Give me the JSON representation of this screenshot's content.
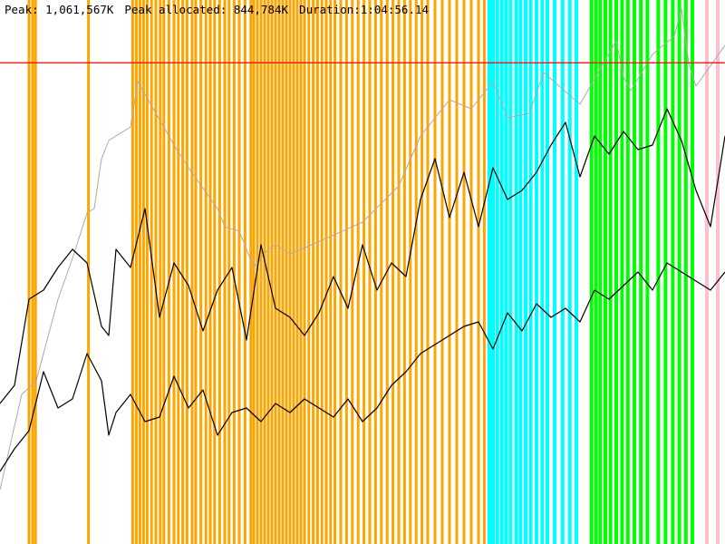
{
  "header": {
    "peak": "Peak: 1,061,567K",
    "peak_allocated": "Peak allocated: 844,784K",
    "duration": "Duration:1:04:56.14"
  },
  "colors": {
    "background": "#ffffff",
    "gc_scavenge": "#ffa500",
    "gc_mark_compact": "#00ffff",
    "gc_full": "#00ff00",
    "gc_other": "#ffc0cb",
    "peak_line": "#ff0000",
    "heap_size_line": "#aaaaaa",
    "heap_used_line": "#000000"
  },
  "chart_data": {
    "type": "line",
    "x_range": [
      0,
      100
    ],
    "y_range": [
      0,
      1200000
    ],
    "peak_marker_value": 1061567,
    "series": [
      {
        "key": "heap_size",
        "color": "#aaaaaa",
        "x": [
          0,
          3,
          5,
          8,
          10,
          12,
          13,
          14,
          15,
          18,
          19,
          24,
          26,
          30,
          31,
          33,
          35,
          37,
          38,
          40,
          43,
          50,
          55,
          58,
          62,
          65,
          68,
          70,
          73,
          75,
          80,
          85,
          86,
          87,
          90,
          93,
          94,
          95,
          96,
          100
        ],
        "values": [
          120000,
          330000,
          360000,
          540000,
          630000,
          730000,
          740000,
          850000,
          890000,
          920000,
          1020000,
          880000,
          830000,
          740000,
          700000,
          690000,
          610000,
          650000,
          660000,
          640000,
          660000,
          710000,
          790000,
          900000,
          980000,
          960000,
          1020000,
          940000,
          950000,
          1040000,
          970000,
          1110000,
          1030000,
          1000000,
          1080000,
          1120000,
          1180000,
          1060000,
          1010000,
          1100000
        ]
      },
      {
        "key": "heap_used_upper",
        "color": "#000000",
        "x": [
          0,
          2,
          4,
          6,
          8,
          10,
          12,
          14,
          15,
          16,
          18,
          20,
          22,
          24,
          26,
          28,
          30,
          32,
          34,
          36,
          38,
          40,
          42,
          44,
          46,
          48,
          50,
          52,
          54,
          56,
          58,
          60,
          62,
          64,
          66,
          68,
          70,
          72,
          74,
          76,
          78,
          80,
          82,
          84,
          86,
          88,
          90,
          92,
          94,
          96,
          98,
          100
        ],
        "values": [
          310000,
          350000,
          540000,
          560000,
          610000,
          650000,
          620000,
          480000,
          460000,
          650000,
          610000,
          740000,
          500000,
          620000,
          570000,
          470000,
          560000,
          610000,
          450000,
          660000,
          520000,
          500000,
          460000,
          510000,
          590000,
          520000,
          660000,
          560000,
          620000,
          590000,
          760000,
          850000,
          720000,
          820000,
          700000,
          830000,
          760000,
          780000,
          820000,
          880000,
          930000,
          810000,
          900000,
          860000,
          910000,
          870000,
          880000,
          960000,
          890000,
          780000,
          700000,
          900000
        ]
      },
      {
        "key": "heap_used_lower",
        "color": "#000000",
        "x": [
          0,
          2,
          4,
          6,
          8,
          10,
          12,
          14,
          15,
          16,
          18,
          20,
          22,
          24,
          26,
          28,
          30,
          32,
          34,
          36,
          38,
          40,
          42,
          44,
          46,
          48,
          50,
          52,
          54,
          56,
          58,
          60,
          62,
          64,
          66,
          68,
          70,
          72,
          74,
          76,
          78,
          80,
          82,
          84,
          86,
          88,
          90,
          92,
          94,
          96,
          98,
          100
        ],
        "values": [
          160000,
          210000,
          250000,
          380000,
          300000,
          320000,
          420000,
          360000,
          240000,
          290000,
          330000,
          270000,
          280000,
          370000,
          300000,
          340000,
          240000,
          290000,
          300000,
          270000,
          310000,
          290000,
          320000,
          300000,
          280000,
          320000,
          270000,
          300000,
          350000,
          380000,
          420000,
          440000,
          460000,
          480000,
          490000,
          430000,
          510000,
          470000,
          530000,
          500000,
          520000,
          490000,
          560000,
          540000,
          570000,
          600000,
          560000,
          620000,
          600000,
          580000,
          560000,
          600000
        ]
      }
    ],
    "gc_event_bands": [
      {
        "x": 4,
        "type": "gc_scavenge"
      },
      {
        "x": 4.5,
        "type": "gc_scavenge"
      },
      {
        "x": 4.9,
        "type": "gc_scavenge"
      },
      {
        "x": 12.2,
        "type": "gc_scavenge"
      },
      {
        "x": 18.3,
        "type": "gc_scavenge"
      },
      {
        "x": 18.8,
        "type": "gc_scavenge"
      },
      {
        "x": 19.3,
        "type": "gc_scavenge"
      },
      {
        "x": 19.8,
        "type": "gc_scavenge"
      },
      {
        "x": 20.3,
        "type": "gc_scavenge"
      },
      {
        "x": 20.9,
        "type": "gc_scavenge"
      },
      {
        "x": 21.5,
        "type": "gc_scavenge"
      },
      {
        "x": 22.1,
        "type": "gc_scavenge"
      },
      {
        "x": 22.6,
        "type": "gc_scavenge"
      },
      {
        "x": 23.3,
        "type": "gc_scavenge"
      },
      {
        "x": 24,
        "type": "gc_scavenge"
      },
      {
        "x": 24.6,
        "type": "gc_scavenge"
      },
      {
        "x": 25.2,
        "type": "gc_scavenge"
      },
      {
        "x": 25.8,
        "type": "gc_scavenge"
      },
      {
        "x": 26.5,
        "type": "gc_scavenge"
      },
      {
        "x": 27,
        "type": "gc_scavenge"
      },
      {
        "x": 27.7,
        "type": "gc_scavenge"
      },
      {
        "x": 28.4,
        "type": "gc_scavenge"
      },
      {
        "x": 29,
        "type": "gc_scavenge"
      },
      {
        "x": 29.6,
        "type": "gc_scavenge"
      },
      {
        "x": 30.3,
        "type": "gc_scavenge"
      },
      {
        "x": 31,
        "type": "gc_scavenge"
      },
      {
        "x": 31.6,
        "type": "gc_scavenge"
      },
      {
        "x": 32.3,
        "type": "gc_scavenge"
      },
      {
        "x": 33,
        "type": "gc_scavenge"
      },
      {
        "x": 33.8,
        "type": "gc_scavenge"
      },
      {
        "x": 34.6,
        "type": "gc_scavenge"
      },
      {
        "x": 35,
        "type": "gc_scavenge"
      },
      {
        "x": 35.5,
        "type": "gc_scavenge"
      },
      {
        "x": 36,
        "type": "gc_scavenge"
      },
      {
        "x": 36.5,
        "type": "gc_scavenge"
      },
      {
        "x": 37,
        "type": "gc_scavenge"
      },
      {
        "x": 37.5,
        "type": "gc_scavenge"
      },
      {
        "x": 38,
        "type": "gc_scavenge"
      },
      {
        "x": 38.5,
        "type": "gc_scavenge"
      },
      {
        "x": 39,
        "type": "gc_scavenge"
      },
      {
        "x": 39.5,
        "type": "gc_scavenge"
      },
      {
        "x": 40,
        "type": "gc_scavenge"
      },
      {
        "x": 40.5,
        "type": "gc_scavenge"
      },
      {
        "x": 41,
        "type": "gc_scavenge"
      },
      {
        "x": 41.5,
        "type": "gc_scavenge"
      },
      {
        "x": 42,
        "type": "gc_scavenge"
      },
      {
        "x": 42.6,
        "type": "gc_scavenge"
      },
      {
        "x": 43.2,
        "type": "gc_scavenge"
      },
      {
        "x": 43.8,
        "type": "gc_scavenge"
      },
      {
        "x": 44.4,
        "type": "gc_scavenge"
      },
      {
        "x": 45,
        "type": "gc_scavenge"
      },
      {
        "x": 45.6,
        "type": "gc_scavenge"
      },
      {
        "x": 46.2,
        "type": "gc_scavenge"
      },
      {
        "x": 47,
        "type": "gc_scavenge"
      },
      {
        "x": 47.8,
        "type": "gc_scavenge"
      },
      {
        "x": 48.6,
        "type": "gc_scavenge"
      },
      {
        "x": 49.4,
        "type": "gc_scavenge"
      },
      {
        "x": 50.2,
        "type": "gc_scavenge"
      },
      {
        "x": 51,
        "type": "gc_scavenge"
      },
      {
        "x": 51.8,
        "type": "gc_scavenge"
      },
      {
        "x": 52.6,
        "type": "gc_scavenge"
      },
      {
        "x": 53.4,
        "type": "gc_scavenge"
      },
      {
        "x": 54.2,
        "type": "gc_scavenge"
      },
      {
        "x": 55,
        "type": "gc_scavenge"
      },
      {
        "x": 55.8,
        "type": "gc_scavenge"
      },
      {
        "x": 56.6,
        "type": "gc_scavenge"
      },
      {
        "x": 57.4,
        "type": "gc_scavenge"
      },
      {
        "x": 58.2,
        "type": "gc_scavenge"
      },
      {
        "x": 59,
        "type": "gc_scavenge"
      },
      {
        "x": 60,
        "type": "gc_scavenge"
      },
      {
        "x": 61,
        "type": "gc_scavenge"
      },
      {
        "x": 62,
        "type": "gc_scavenge"
      },
      {
        "x": 63,
        "type": "gc_scavenge"
      },
      {
        "x": 64,
        "type": "gc_scavenge"
      },
      {
        "x": 65,
        "type": "gc_scavenge"
      },
      {
        "x": 66,
        "type": "gc_scavenge"
      },
      {
        "x": 66.8,
        "type": "gc_scavenge"
      },
      {
        "x": 67.5,
        "type": "gc_mark_compact"
      },
      {
        "x": 68,
        "type": "gc_mark_compact"
      },
      {
        "x": 68.6,
        "type": "gc_mark_compact"
      },
      {
        "x": 69.2,
        "type": "gc_mark_compact"
      },
      {
        "x": 69.8,
        "type": "gc_mark_compact"
      },
      {
        "x": 70.4,
        "type": "gc_mark_compact"
      },
      {
        "x": 71.2,
        "type": "gc_mark_compact"
      },
      {
        "x": 71.8,
        "type": "gc_mark_compact"
      },
      {
        "x": 72.5,
        "type": "gc_mark_compact"
      },
      {
        "x": 73.2,
        "type": "gc_mark_compact"
      },
      {
        "x": 74,
        "type": "gc_mark_compact"
      },
      {
        "x": 74.8,
        "type": "gc_mark_compact"
      },
      {
        "x": 75.5,
        "type": "gc_mark_compact"
      },
      {
        "x": 76.5,
        "type": "gc_mark_compact"
      },
      {
        "x": 77.6,
        "type": "gc_mark_compact"
      },
      {
        "x": 78.6,
        "type": "gc_mark_compact"
      },
      {
        "x": 79.5,
        "type": "gc_mark_compact"
      },
      {
        "x": 81.6,
        "type": "gc_full"
      },
      {
        "x": 82.2,
        "type": "gc_full"
      },
      {
        "x": 82.8,
        "type": "gc_full"
      },
      {
        "x": 83.5,
        "type": "gc_full"
      },
      {
        "x": 84.2,
        "type": "gc_full"
      },
      {
        "x": 85,
        "type": "gc_full"
      },
      {
        "x": 85.8,
        "type": "gc_full"
      },
      {
        "x": 86.6,
        "type": "gc_full"
      },
      {
        "x": 87.5,
        "type": "gc_full"
      },
      {
        "x": 88.4,
        "type": "gc_full"
      },
      {
        "x": 89.3,
        "type": "gc_full"
      },
      {
        "x": 90.8,
        "type": "gc_full"
      },
      {
        "x": 91.8,
        "type": "gc_full"
      },
      {
        "x": 92.8,
        "type": "gc_full"
      },
      {
        "x": 93.7,
        "type": "gc_full"
      },
      {
        "x": 94.6,
        "type": "gc_full"
      },
      {
        "x": 95.5,
        "type": "gc_full"
      },
      {
        "x": 97.5,
        "type": "gc_other"
      },
      {
        "x": 99,
        "type": "gc_other"
      }
    ]
  }
}
